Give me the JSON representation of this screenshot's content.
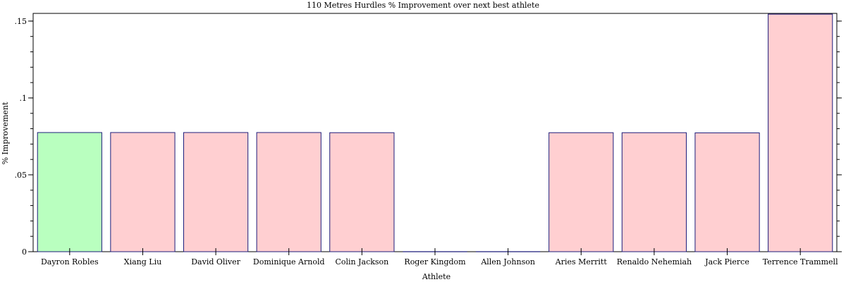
{
  "chart_data": {
    "type": "bar",
    "title": "110 Metres Hurdles % Improvement over next best athlete",
    "xlabel": "Athlete",
    "ylabel": "% Improvement",
    "categories": [
      "Dayron Robles",
      "Xiang Liu",
      "David Oliver",
      "Dominique Arnold",
      "Colin Jackson",
      "Roger Kingdom",
      "Allen Johnson",
      "Aries Merritt",
      "Renaldo Nehemiah",
      "Jack Pierce",
      "Terrence Trammell"
    ],
    "values": [
      0.0775,
      0.0775,
      0.0775,
      0.0775,
      0.0774,
      0,
      0,
      0.0774,
      0.0774,
      0.0773,
      0.1545
    ],
    "ylim": [
      0,
      0.155
    ],
    "yticks": [
      {
        "value": 0,
        "label": "0"
      },
      {
        "value": 0.05,
        "label": ".05"
      },
      {
        "value": 0.1,
        "label": ".1"
      },
      {
        "value": 0.15,
        "label": ".15"
      }
    ],
    "colors": {
      "highlight_fill": "#b9ffbf",
      "bar_fill": "#ffcfd1",
      "bar_stroke": "#1c1c7a",
      "axis": "#000000"
    },
    "highlight_index": 0,
    "grid": false
  }
}
